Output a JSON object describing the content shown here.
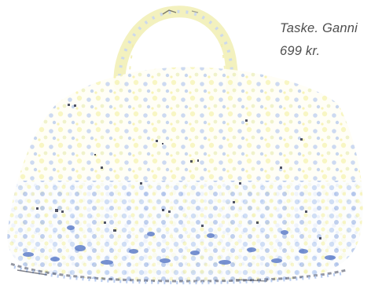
{
  "product": {
    "name_line": "Taske. Ganni",
    "price_line": "699 kr."
  },
  "image": {
    "subject": "crochet-bag-icon",
    "colors": {
      "background": "#ffffff",
      "yarn_yellow": "#f3f0a6",
      "yarn_blue": "#9fb6e6",
      "yarn_dark": "#3d3f52",
      "text": "#4f4f4f"
    }
  }
}
